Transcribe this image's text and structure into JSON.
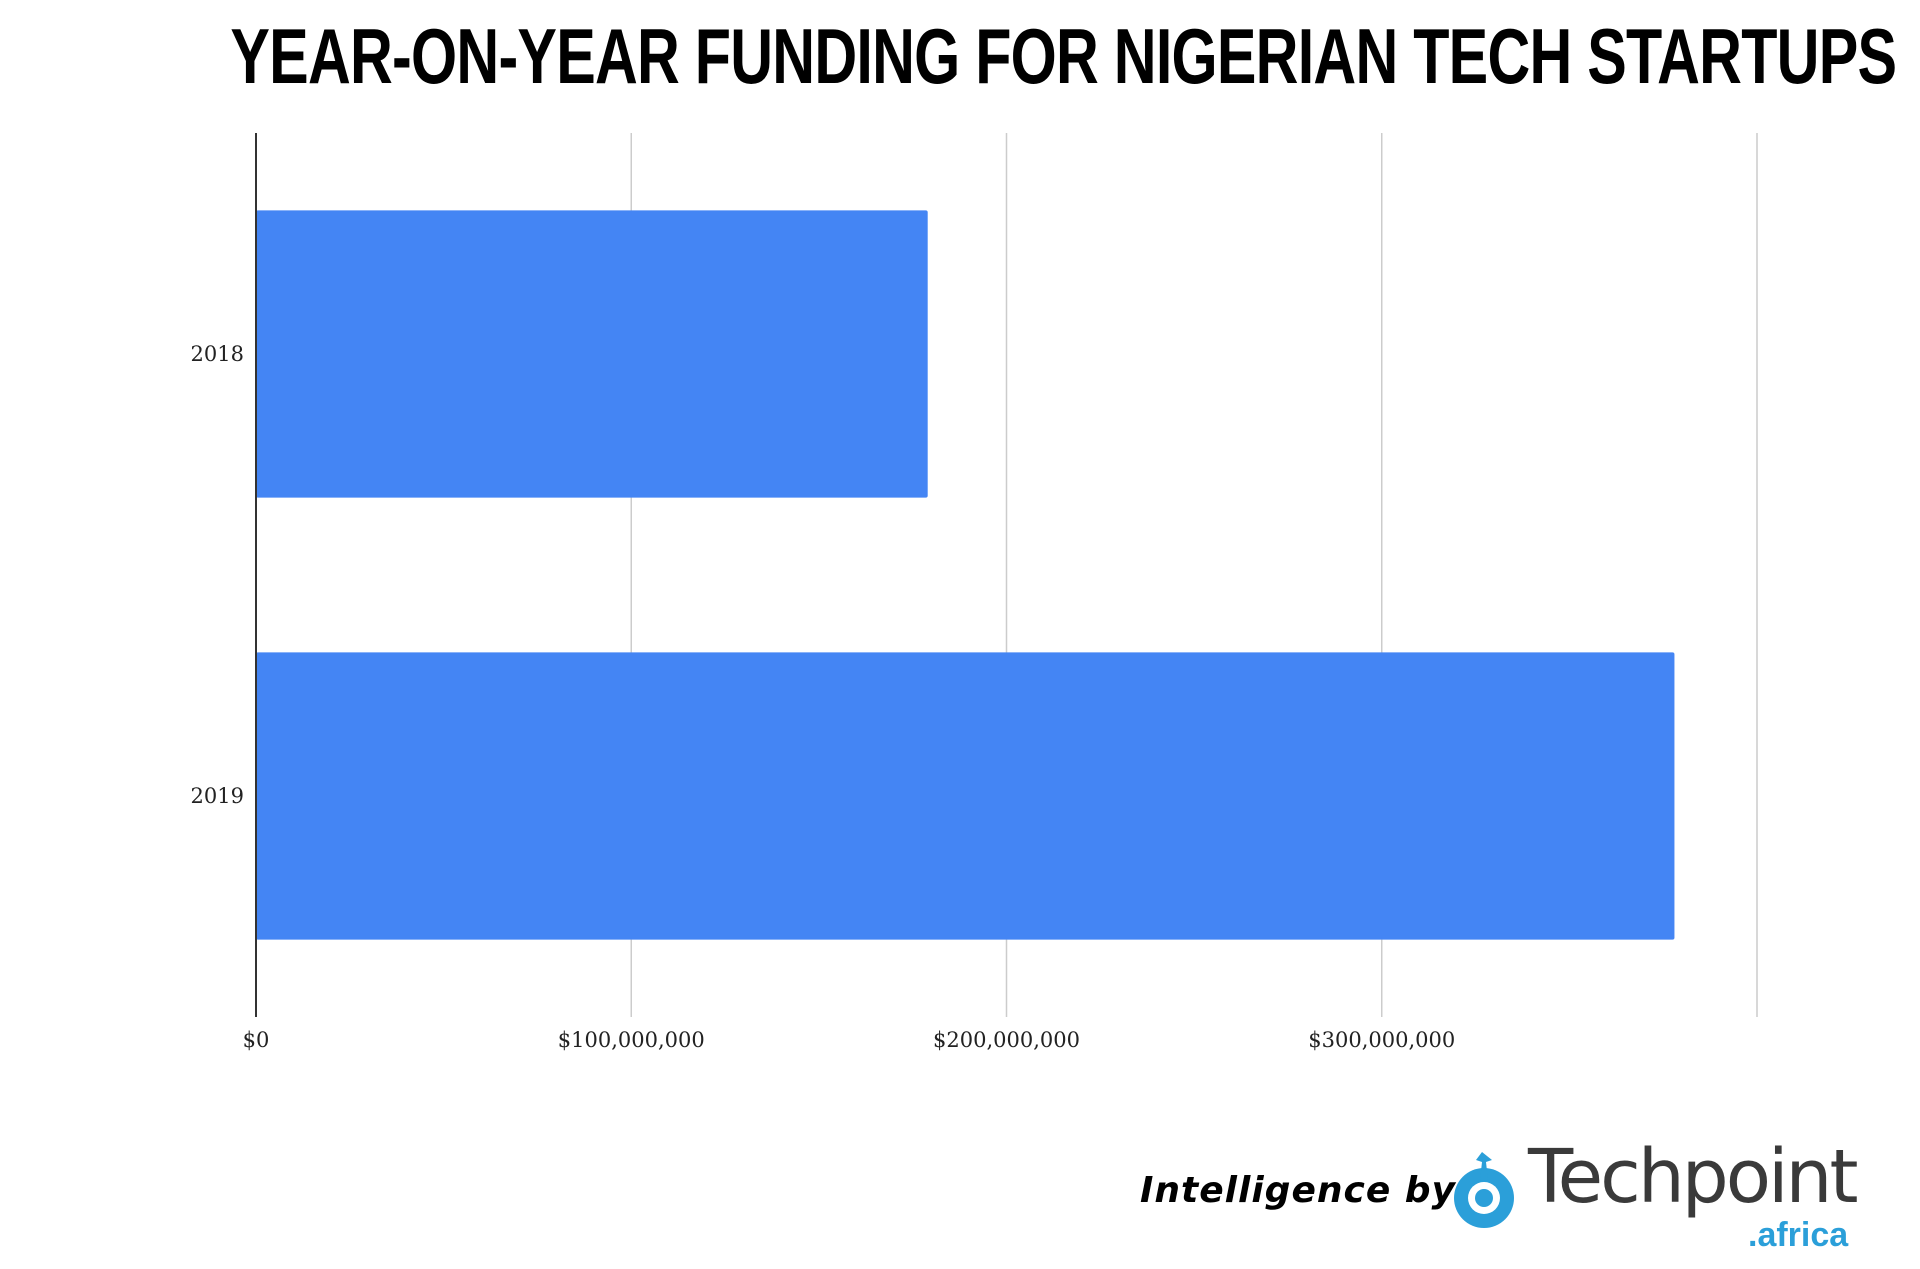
{
  "chart_data": {
    "type": "bar",
    "orientation": "horizontal",
    "title": "YEAR-ON-YEAR FUNDING FOR NIGERIAN TECH STARTUPS",
    "categories": [
      "2018",
      "2019"
    ],
    "values": [
      179000000,
      378000000
    ],
    "xlim": [
      0,
      400000000
    ],
    "x_ticks": [
      0,
      100000000,
      200000000,
      300000000
    ],
    "x_tick_labels": [
      "$0",
      "$100,000,000",
      "$200,000,000",
      "$300,000,000"
    ],
    "xlabel": "",
    "ylabel": "",
    "grid": true,
    "legend": "none",
    "bar_color": "#4485f4"
  },
  "branding": {
    "intelligence_label": "Intelligence by",
    "logo_word": "Techpoint",
    "logo_suffix": ".africa",
    "logo_icon": "target-pin-icon",
    "logo_color": "#2b9fd9"
  }
}
